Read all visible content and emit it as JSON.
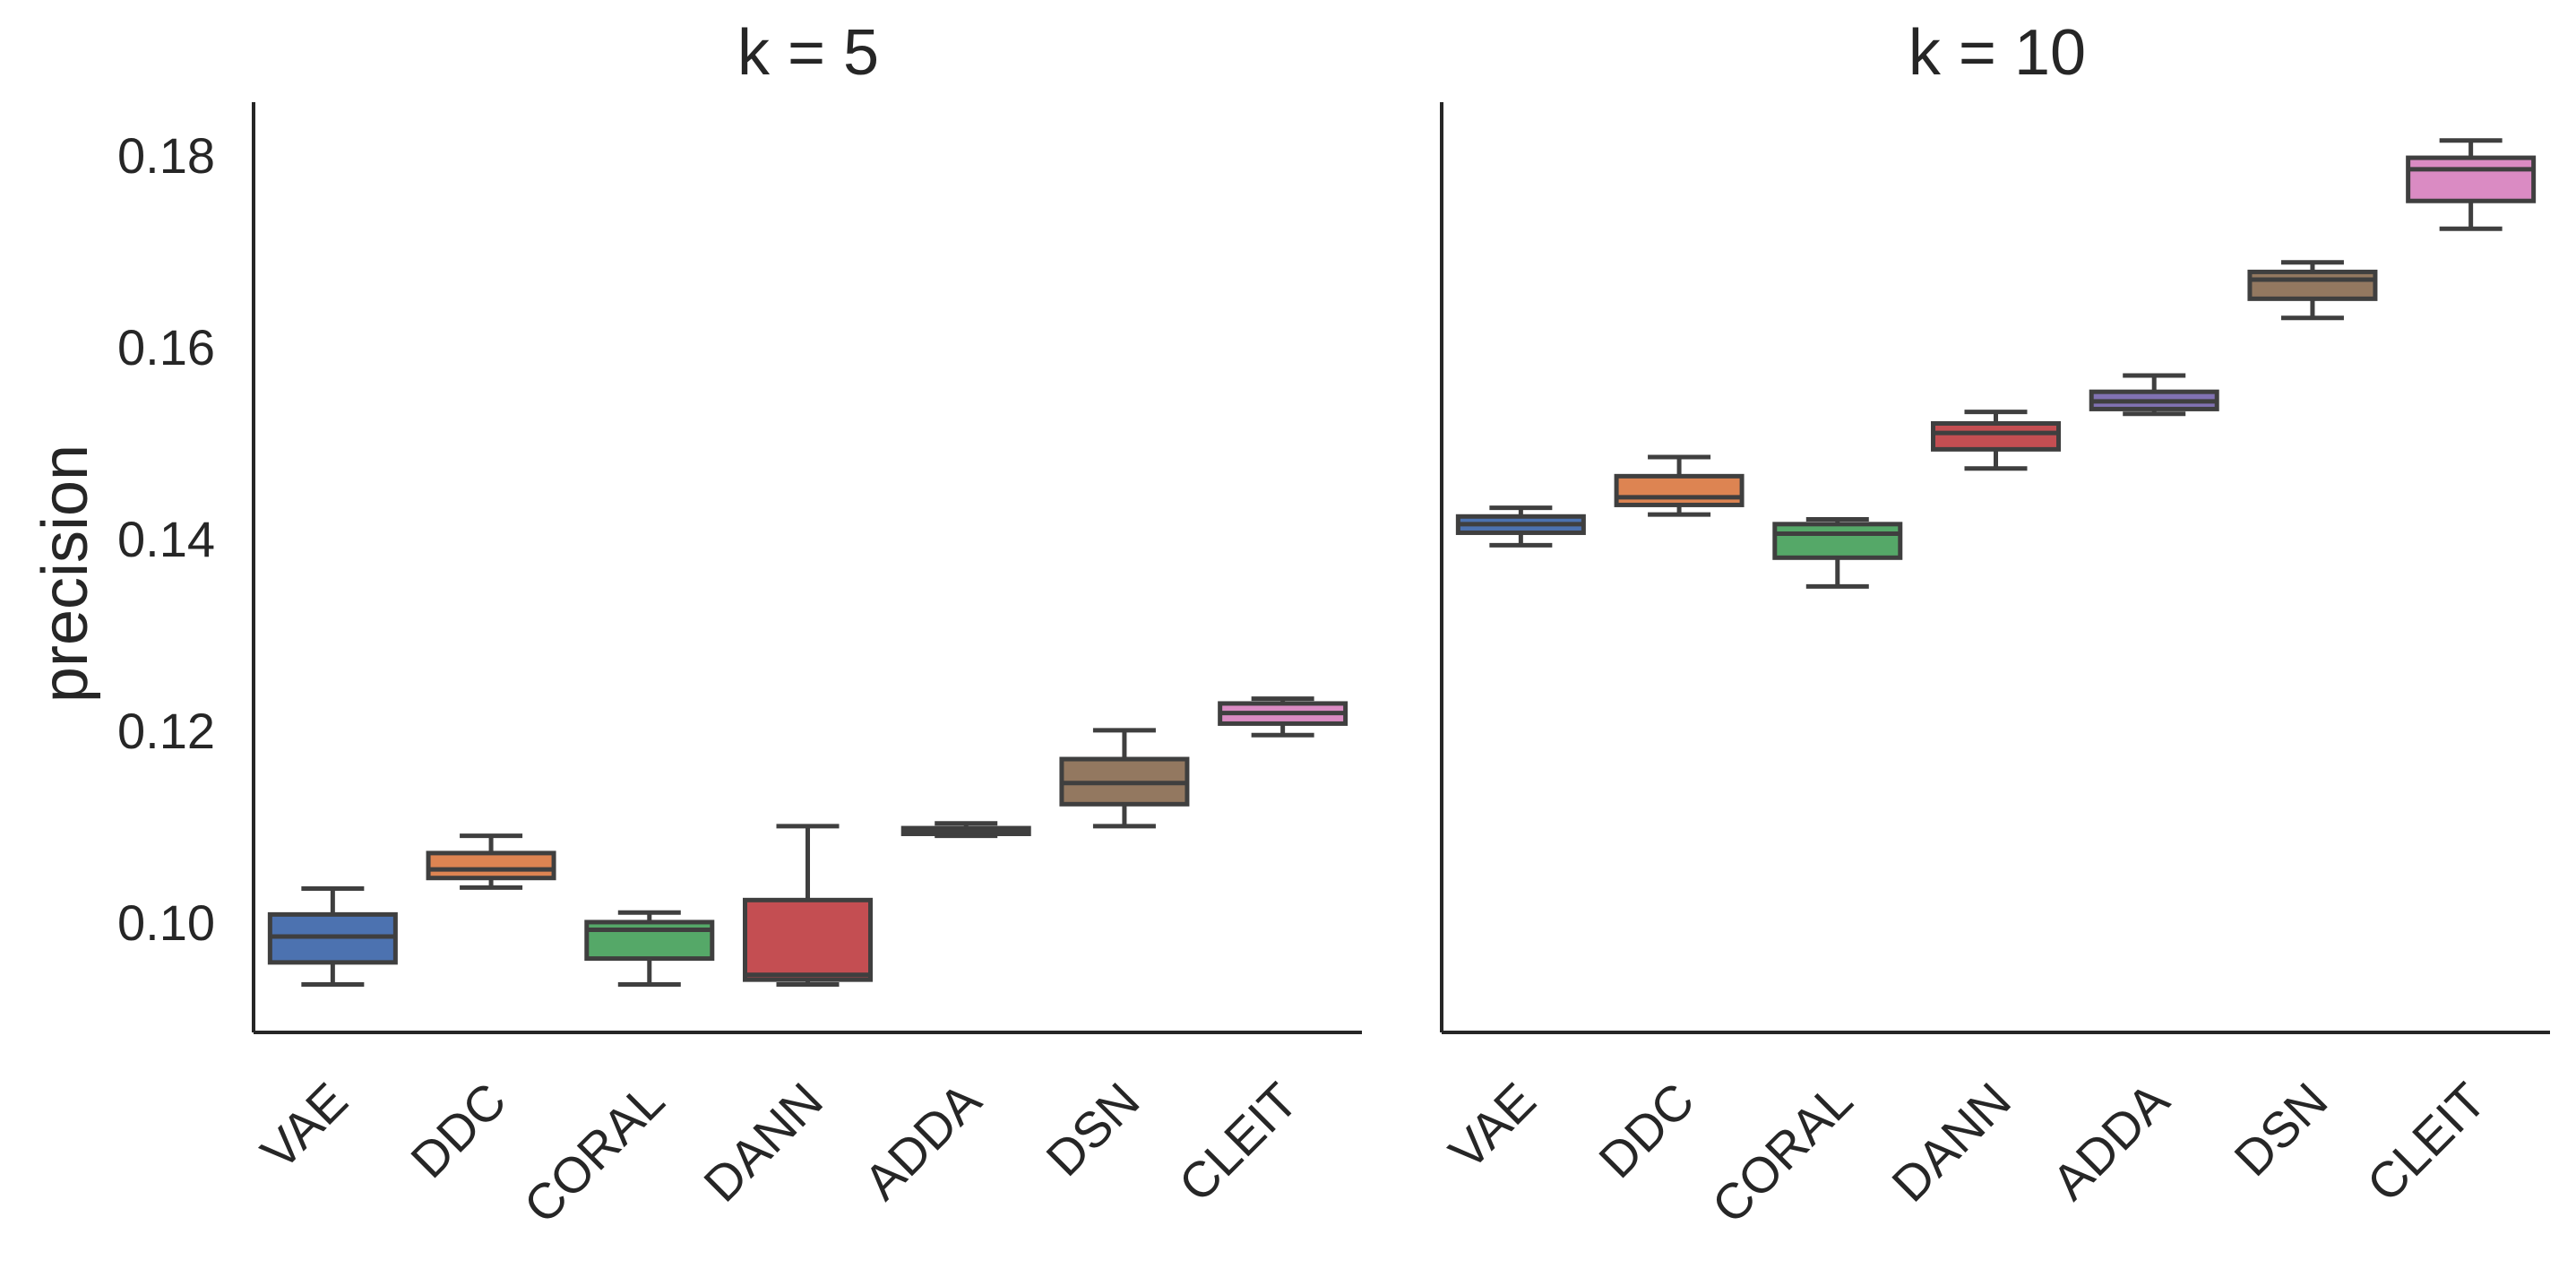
{
  "chart_data": {
    "type": "boxplot",
    "ylabel": "precision",
    "yticks": [
      0.1,
      0.12,
      0.14,
      0.16,
      0.18
    ],
    "ylim": [
      0.0885,
      0.1855
    ],
    "shared_y": true,
    "categories": [
      "VAE",
      "DDC",
      "CORAL",
      "DANN",
      "ADDA",
      "DSN",
      "CLEIT"
    ],
    "colors": [
      "#4c72b0",
      "#dd8452",
      "#55a868",
      "#c44e52",
      "#8172b3",
      "#937860",
      "#da8bc3"
    ],
    "panels": [
      {
        "title": "k = 5",
        "boxes": [
          {
            "whislo": 0.0935,
            "q1": 0.0958,
            "med": 0.0985,
            "q3": 0.1008,
            "whishi": 0.1035
          },
          {
            "whislo": 0.1036,
            "q1": 0.1046,
            "med": 0.1055,
            "q3": 0.1072,
            "whishi": 0.109
          },
          {
            "whislo": 0.0935,
            "q1": 0.0962,
            "med": 0.0992,
            "q3": 0.1,
            "whishi": 0.101
          },
          {
            "whislo": 0.0935,
            "q1": 0.094,
            "med": 0.0945,
            "q3": 0.1023,
            "whishi": 0.11
          },
          {
            "whislo": 0.109,
            "q1": 0.1092,
            "med": 0.1095,
            "q3": 0.1098,
            "whishi": 0.1103
          },
          {
            "whislo": 0.11,
            "q1": 0.1123,
            "med": 0.1145,
            "q3": 0.117,
            "whishi": 0.12
          },
          {
            "whislo": 0.1195,
            "q1": 0.1207,
            "med": 0.1218,
            "q3": 0.1228,
            "whishi": 0.1233
          }
        ]
      },
      {
        "title": "k = 10",
        "boxes": [
          {
            "whislo": 0.1393,
            "q1": 0.1406,
            "med": 0.1415,
            "q3": 0.1423,
            "whishi": 0.1432
          },
          {
            "whislo": 0.1425,
            "q1": 0.1435,
            "med": 0.1443,
            "q3": 0.1465,
            "whishi": 0.1485
          },
          {
            "whislo": 0.135,
            "q1": 0.138,
            "med": 0.1405,
            "q3": 0.1415,
            "whishi": 0.142
          },
          {
            "whislo": 0.1473,
            "q1": 0.1493,
            "med": 0.151,
            "q3": 0.152,
            "whishi": 0.1532
          },
          {
            "whislo": 0.153,
            "q1": 0.1535,
            "med": 0.1543,
            "q3": 0.1553,
            "whishi": 0.157
          },
          {
            "whislo": 0.163,
            "q1": 0.165,
            "med": 0.167,
            "q3": 0.1678,
            "whishi": 0.1688
          },
          {
            "whislo": 0.1723,
            "q1": 0.1752,
            "med": 0.1785,
            "q3": 0.1797,
            "whishi": 0.1815
          }
        ]
      }
    ]
  }
}
